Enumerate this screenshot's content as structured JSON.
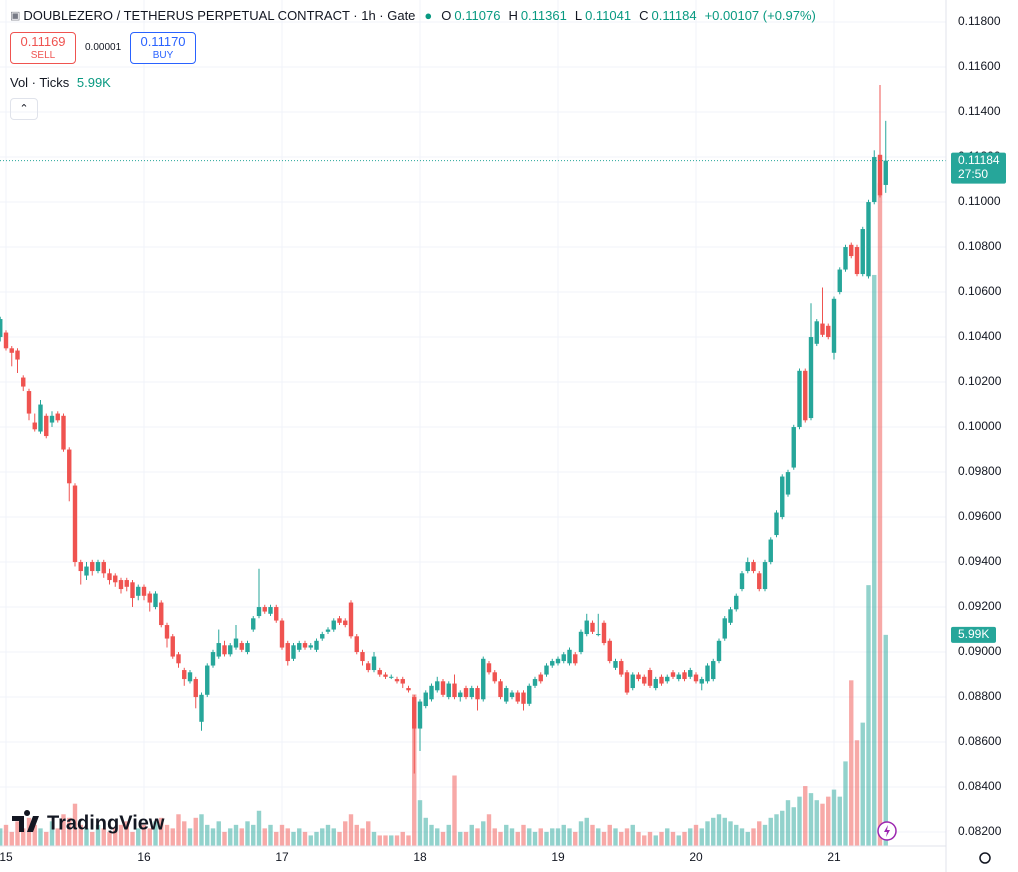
{
  "chart_data": {
    "type": "candlestick",
    "title": "DOUBLEZERO / TETHERUS PERPETUAL CONTRACT · 1h · Gate",
    "ohlc_labels": [
      "O",
      "H",
      "L",
      "C"
    ],
    "change": "+0.00107 (+0.97%)",
    "trade_panel": {
      "sell_price": "0.11169",
      "sell": "SELL",
      "spread": "0.00001",
      "buy_price": "0.11170",
      "buy": "BUY"
    },
    "volume_title": "Vol · Ticks",
    "volume_label": "5.99K",
    "countdown": "27:50",
    "brand": "TradingView",
    "up_color": "#26a69a",
    "down_color": "#ef5350",
    "volume_up_color": "rgba(38,166,154,0.5)",
    "volume_down_color": "rgba(239,83,80,0.5)",
    "grid": true,
    "categories": [
      null,
      "15",
      null,
      null,
      null,
      null,
      null,
      null,
      null,
      null,
      null,
      null,
      null,
      null,
      null,
      null,
      null,
      null,
      null,
      null,
      null,
      null,
      null,
      null,
      null,
      "16",
      null,
      null,
      null,
      null,
      null,
      null,
      null,
      null,
      null,
      null,
      null,
      null,
      null,
      null,
      null,
      null,
      null,
      null,
      null,
      null,
      null,
      null,
      null,
      "17",
      null,
      null,
      null,
      null,
      null,
      null,
      null,
      null,
      null,
      null,
      null,
      null,
      null,
      null,
      null,
      null,
      null,
      null,
      null,
      null,
      null,
      null,
      null,
      "18",
      null,
      null,
      null,
      null,
      null,
      null,
      null,
      null,
      null,
      null,
      null,
      null,
      null,
      null,
      null,
      null,
      null,
      null,
      null,
      null,
      null,
      null,
      null,
      "19",
      null,
      null,
      null,
      null,
      null,
      null,
      null,
      null,
      null,
      null,
      null,
      null,
      null,
      null,
      null,
      null,
      null,
      null,
      null,
      null,
      null,
      null,
      null,
      "20",
      null,
      null,
      null,
      null,
      null,
      null,
      null,
      null,
      null,
      null,
      null,
      null,
      null,
      null,
      null,
      null,
      null,
      null,
      null,
      null,
      null,
      null,
      null,
      "21",
      null,
      null,
      null,
      null,
      null,
      null,
      null,
      null,
      null
    ],
    "open": [
      0.104,
      0.1042,
      0.1035,
      0.1034,
      0.1022,
      0.1016,
      0.1002,
      0.0998,
      0.1005,
      0.1002,
      0.1006,
      0.1005,
      0.099,
      0.0974,
      0.094,
      0.0934,
      0.094,
      0.0936,
      0.094,
      0.0935,
      0.0934,
      0.0932,
      0.0932,
      0.0931,
      0.0925,
      0.0929,
      0.0926,
      0.092,
      0.0922,
      0.0912,
      0.0907,
      0.0899,
      0.0892,
      0.0887,
      0.0888,
      0.0869,
      0.0881,
      0.0894,
      0.0898,
      0.0903,
      0.0899,
      0.0902,
      0.0904,
      0.09,
      0.091,
      0.0916,
      0.092,
      0.0917,
      0.092,
      0.0914,
      0.0904,
      0.0897,
      0.0901,
      0.0904,
      0.0902,
      0.0901,
      0.0906,
      0.0909,
      0.091,
      0.0915,
      0.0914,
      0.0922,
      0.0907,
      0.09,
      0.0895,
      0.0892,
      0.0892,
      0.089,
      0.0889,
      0.0888,
      0.0888,
      0.0884,
      0.088,
      0.0866,
      0.0876,
      0.0879,
      0.0883,
      0.0887,
      0.088,
      0.0886,
      0.088,
      0.0884,
      0.088,
      0.0884,
      0.0879,
      0.0895,
      0.0891,
      0.0887,
      0.0878,
      0.088,
      0.0882,
      0.0882,
      0.0877,
      0.0885,
      0.089,
      0.089,
      0.0894,
      0.0895,
      0.0896,
      0.0895,
      0.0899,
      0.09,
      0.0908,
      0.0913,
      0.0908,
      0.0913,
      0.0905,
      0.0893,
      0.0896,
      0.0891,
      0.0884,
      0.089,
      0.0889,
      0.0892,
      0.0884,
      0.0889,
      0.0887,
      0.0891,
      0.0888,
      0.0891,
      0.0889,
      0.089,
      0.0886,
      0.0887,
      0.0888,
      0.0896,
      0.0906,
      0.0913,
      0.0919,
      0.0928,
      0.0936,
      0.094,
      0.0935,
      0.0928,
      0.094,
      0.0952,
      0.096,
      0.097,
      0.0982,
      0.1,
      0.1025,
      0.1004,
      0.1037,
      0.1046,
      0.1045,
      0.1033,
      0.106,
      0.107,
      0.1081,
      0.108,
      0.1068,
      0.1067,
      0.11,
      0.1121,
      0.11076
    ],
    "high": [
      0.1049,
      0.1043,
      0.1036,
      0.1035,
      0.1023,
      0.1017,
      0.1006,
      0.1012,
      0.1006,
      0.1007,
      0.1007,
      0.1006,
      0.0991,
      0.0975,
      0.0941,
      0.094,
      0.0941,
      0.0941,
      0.0941,
      0.0937,
      0.0935,
      0.0933,
      0.0933,
      0.0932,
      0.093,
      0.093,
      0.0927,
      0.0927,
      0.0923,
      0.0913,
      0.0908,
      0.09,
      0.0893,
      0.0892,
      0.0889,
      0.0882,
      0.0895,
      0.0901,
      0.091,
      0.0905,
      0.0904,
      0.0912,
      0.0905,
      0.0905,
      0.0916,
      0.0937,
      0.0921,
      0.0921,
      0.0921,
      0.0915,
      0.0905,
      0.0904,
      0.0905,
      0.0905,
      0.0904,
      0.0906,
      0.0909,
      0.0911,
      0.0915,
      0.0916,
      0.0915,
      0.0923,
      0.0908,
      0.0901,
      0.0896,
      0.09,
      0.0893,
      0.0891,
      0.089,
      0.0889,
      0.0889,
      0.0885,
      0.0881,
      0.0879,
      0.0883,
      0.0886,
      0.0889,
      0.0888,
      0.0887,
      0.089,
      0.0883,
      0.0885,
      0.0885,
      0.0885,
      0.0898,
      0.0896,
      0.0892,
      0.0888,
      0.0885,
      0.0883,
      0.0883,
      0.0883,
      0.0886,
      0.0889,
      0.0891,
      0.0895,
      0.0897,
      0.0898,
      0.09,
      0.0902,
      0.09,
      0.091,
      0.0917,
      0.0914,
      0.0917,
      0.0914,
      0.0906,
      0.0897,
      0.0897,
      0.0892,
      0.0891,
      0.0891,
      0.089,
      0.0893,
      0.0889,
      0.089,
      0.089,
      0.0892,
      0.0891,
      0.0892,
      0.0893,
      0.0891,
      0.0889,
      0.0895,
      0.0897,
      0.0906,
      0.0916,
      0.092,
      0.0926,
      0.0936,
      0.0942,
      0.0941,
      0.0936,
      0.0941,
      0.0951,
      0.0963,
      0.0979,
      0.0981,
      0.1001,
      0.1026,
      0.1026,
      0.1055,
      0.1048,
      0.1062,
      0.1046,
      0.1058,
      0.1071,
      0.1081,
      0.1082,
      0.1081,
      0.1089,
      0.1101,
      0.1123,
      0.1152,
      0.11361
    ],
    "low": [
      0.1038,
      0.1034,
      0.1027,
      0.1024,
      0.1016,
      0.1003,
      0.0998,
      0.0997,
      0.0995,
      0.1,
      0.1002,
      0.0989,
      0.0967,
      0.0938,
      0.093,
      0.0932,
      0.0934,
      0.0935,
      0.0933,
      0.093,
      0.0929,
      0.0926,
      0.0927,
      0.092,
      0.0923,
      0.0923,
      0.0918,
      0.0919,
      0.0911,
      0.0902,
      0.0897,
      0.0893,
      0.0885,
      0.0886,
      0.0875,
      0.0865,
      0.088,
      0.0893,
      0.0897,
      0.0898,
      0.0898,
      0.0901,
      0.09,
      0.0899,
      0.0909,
      0.0915,
      0.0917,
      0.0916,
      0.0913,
      0.0901,
      0.0894,
      0.0896,
      0.09,
      0.0901,
      0.0901,
      0.09,
      0.0905,
      0.0908,
      0.0909,
      0.0912,
      0.0911,
      0.0906,
      0.0899,
      0.0894,
      0.0891,
      0.0891,
      0.0889,
      0.0888,
      0.0888,
      0.0886,
      0.0884,
      0.0882,
      0.0846,
      0.0856,
      0.0875,
      0.0878,
      0.0882,
      0.088,
      0.0879,
      0.0879,
      0.0878,
      0.0879,
      0.0879,
      0.0874,
      0.0878,
      0.089,
      0.0886,
      0.0879,
      0.0877,
      0.0879,
      0.0877,
      0.0874,
      0.0876,
      0.0884,
      0.0886,
      0.0889,
      0.0893,
      0.0894,
      0.0895,
      0.0894,
      0.0894,
      0.0899,
      0.0907,
      0.0908,
      0.0907,
      0.0903,
      0.0895,
      0.0892,
      0.0889,
      0.0881,
      0.0883,
      0.0887,
      0.0885,
      0.0884,
      0.0883,
      0.0885,
      0.0886,
      0.0888,
      0.0887,
      0.0887,
      0.0888,
      0.0886,
      0.0883,
      0.0886,
      0.0887,
      0.0895,
      0.0905,
      0.0912,
      0.0918,
      0.0927,
      0.0935,
      0.0935,
      0.0927,
      0.0927,
      0.0939,
      0.0951,
      0.0959,
      0.0969,
      0.0981,
      0.0999,
      0.1002,
      0.1003,
      0.1036,
      0.104,
      0.1039,
      0.103,
      0.1059,
      0.1069,
      0.1075,
      0.1067,
      0.1067,
      0.1066,
      0.1099,
      0.1102,
      0.11041
    ],
    "close": [
      0.1048,
      0.1035,
      0.1033,
      0.103,
      0.1018,
      0.1006,
      0.0999,
      0.101,
      0.0996,
      0.1005,
      0.1003,
      0.099,
      0.0975,
      0.094,
      0.0936,
      0.0938,
      0.0936,
      0.094,
      0.0935,
      0.0932,
      0.0931,
      0.0928,
      0.0929,
      0.0924,
      0.0929,
      0.0925,
      0.0922,
      0.0926,
      0.0912,
      0.0906,
      0.0898,
      0.0895,
      0.0888,
      0.0891,
      0.088,
      0.0881,
      0.0894,
      0.09,
      0.0904,
      0.0899,
      0.0903,
      0.0906,
      0.0901,
      0.0904,
      0.0915,
      0.092,
      0.0918,
      0.092,
      0.0914,
      0.0902,
      0.0896,
      0.0903,
      0.0904,
      0.0902,
      0.0903,
      0.0905,
      0.0908,
      0.091,
      0.0914,
      0.0913,
      0.0912,
      0.0907,
      0.09,
      0.0896,
      0.0892,
      0.0898,
      0.089,
      0.0889,
      0.0889,
      0.0887,
      0.0886,
      0.0883,
      0.0866,
      0.0878,
      0.0882,
      0.0885,
      0.0887,
      0.0881,
      0.0886,
      0.088,
      0.0882,
      0.088,
      0.0884,
      0.0879,
      0.0897,
      0.0891,
      0.0887,
      0.088,
      0.0884,
      0.0882,
      0.0878,
      0.0877,
      0.0885,
      0.0888,
      0.0887,
      0.0894,
      0.0896,
      0.0897,
      0.0899,
      0.0901,
      0.0895,
      0.0909,
      0.0914,
      0.0909,
      0.0908,
      0.0904,
      0.0896,
      0.0896,
      0.089,
      0.0882,
      0.089,
      0.0888,
      0.0886,
      0.0885,
      0.0888,
      0.0886,
      0.0889,
      0.0889,
      0.089,
      0.0888,
      0.0892,
      0.0887,
      0.0888,
      0.0894,
      0.0896,
      0.0905,
      0.0915,
      0.0919,
      0.0925,
      0.0935,
      0.094,
      0.0936,
      0.0928,
      0.094,
      0.095,
      0.0962,
      0.0978,
      0.098,
      0.1,
      0.1025,
      0.1003,
      0.104,
      0.1047,
      0.1041,
      0.104,
      0.1057,
      0.107,
      0.108,
      0.1076,
      0.1068,
      0.1088,
      0.11,
      0.112,
      0.1103,
      0.11184
    ],
    "volume": [
      500,
      600,
      400,
      700,
      500,
      800,
      600,
      500,
      400,
      700,
      500,
      900,
      800,
      1200,
      600,
      500,
      400,
      600,
      500,
      400,
      500,
      600,
      700,
      400,
      500,
      600,
      500,
      700,
      800,
      600,
      500,
      900,
      700,
      500,
      800,
      900,
      600,
      500,
      700,
      400,
      500,
      600,
      500,
      700,
      600,
      1000,
      500,
      600,
      400,
      600,
      500,
      400,
      500,
      400,
      300,
      400,
      500,
      600,
      500,
      400,
      700,
      900,
      600,
      500,
      700,
      400,
      300,
      300,
      300,
      300,
      400,
      300,
      4300,
      1300,
      800,
      600,
      500,
      400,
      600,
      2000,
      400,
      400,
      600,
      500,
      700,
      900,
      500,
      400,
      600,
      500,
      400,
      600,
      500,
      400,
      500,
      400,
      500,
      500,
      600,
      500,
      400,
      700,
      800,
      600,
      500,
      400,
      600,
      500,
      400,
      500,
      600,
      400,
      300,
      400,
      300,
      400,
      500,
      400,
      300,
      400,
      500,
      600,
      500,
      700,
      800,
      900,
      800,
      700,
      600,
      500,
      400,
      500,
      700,
      600,
      800,
      900,
      1000,
      1300,
      1100,
      1400,
      1700,
      1500,
      1300,
      1200,
      1400,
      1600,
      1400,
      2400,
      4700,
      3000,
      3500,
      7400,
      16200,
      18800,
      5990
    ],
    "vlim": [
      0,
      24000
    ],
    "ylim": [
      0.08138,
      0.11898
    ],
    "yticks": [
      {
        "value": 0.082,
        "label": "0.08200"
      },
      {
        "value": 0.084,
        "label": "0.08400"
      },
      {
        "value": 0.086,
        "label": "0.08600"
      },
      {
        "value": 0.088,
        "label": "0.08800"
      },
      {
        "value": 0.09,
        "label": "0.09000"
      },
      {
        "value": 0.092,
        "label": "0.09200"
      },
      {
        "value": 0.094,
        "label": "0.09400"
      },
      {
        "value": 0.096,
        "label": "0.09600"
      },
      {
        "value": 0.098,
        "label": "0.09800"
      },
      {
        "value": 0.1,
        "label": "0.10000"
      },
      {
        "value": 0.102,
        "label": "0.10200"
      },
      {
        "value": 0.104,
        "label": "0.10400"
      },
      {
        "value": 0.106,
        "label": "0.10600"
      },
      {
        "value": 0.108,
        "label": "0.10800"
      },
      {
        "value": 0.11,
        "label": "0.11000"
      },
      {
        "value": 0.112,
        "label": "0.11200"
      },
      {
        "value": 0.114,
        "label": "0.11400"
      },
      {
        "value": 0.116,
        "label": "0.11600"
      },
      {
        "value": 0.118,
        "label": "0.11800"
      }
    ]
  }
}
